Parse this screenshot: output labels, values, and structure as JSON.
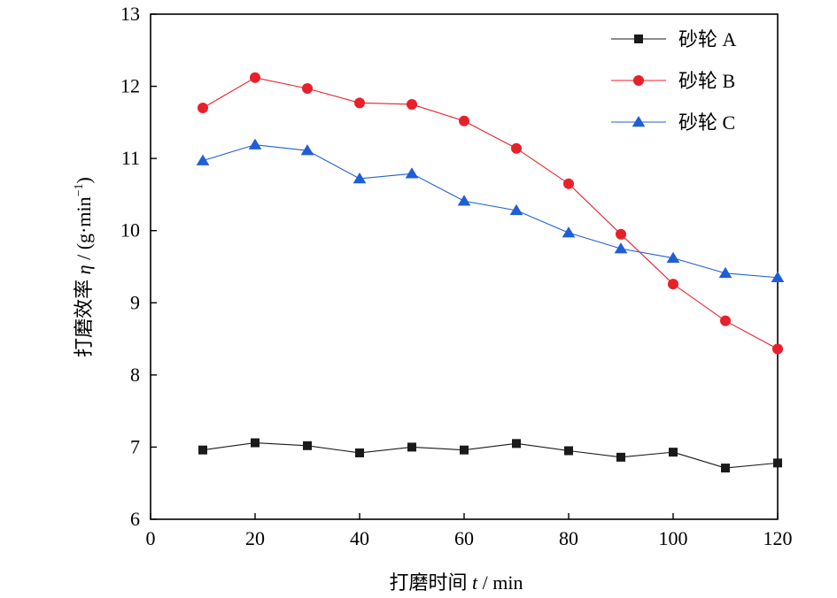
{
  "chart_data": {
    "type": "line",
    "xlabel_main": "打磨时间 ",
    "xlabel_var": "t",
    "xlabel_unit": " / min",
    "ylabel_main": "打磨效率 ",
    "ylabel_var": "η",
    "ylabel_unit_pre": " / (g·min",
    "ylabel_unit_sup": "−1",
    "ylabel_unit_post": ")",
    "xlim": [
      0,
      120
    ],
    "ylim": [
      6,
      13
    ],
    "x_ticks": [
      0,
      20,
      40,
      60,
      80,
      100,
      120
    ],
    "y_ticks": [
      6,
      7,
      8,
      9,
      10,
      11,
      12,
      13
    ],
    "x": [
      10,
      20,
      30,
      40,
      50,
      60,
      70,
      80,
      90,
      100,
      110,
      120
    ],
    "legend_position": "top-right",
    "grid": false,
    "series": [
      {
        "name": "砂轮 A",
        "marker": "square",
        "color": "#1a1a1a",
        "values": [
          6.96,
          7.06,
          7.02,
          6.92,
          7.0,
          6.96,
          7.05,
          6.95,
          6.86,
          6.93,
          6.71,
          6.78
        ]
      },
      {
        "name": "砂轮 B",
        "marker": "circle",
        "color": "#e8202a",
        "values": [
          11.7,
          12.12,
          11.97,
          11.77,
          11.75,
          11.52,
          11.14,
          10.65,
          9.95,
          9.26,
          8.75,
          8.36
        ]
      },
      {
        "name": "砂轮 C",
        "marker": "triangle",
        "color": "#1f5fd6",
        "values": [
          10.97,
          11.19,
          11.11,
          10.72,
          10.79,
          10.41,
          10.28,
          9.97,
          9.75,
          9.62,
          9.41,
          9.35
        ]
      }
    ]
  }
}
